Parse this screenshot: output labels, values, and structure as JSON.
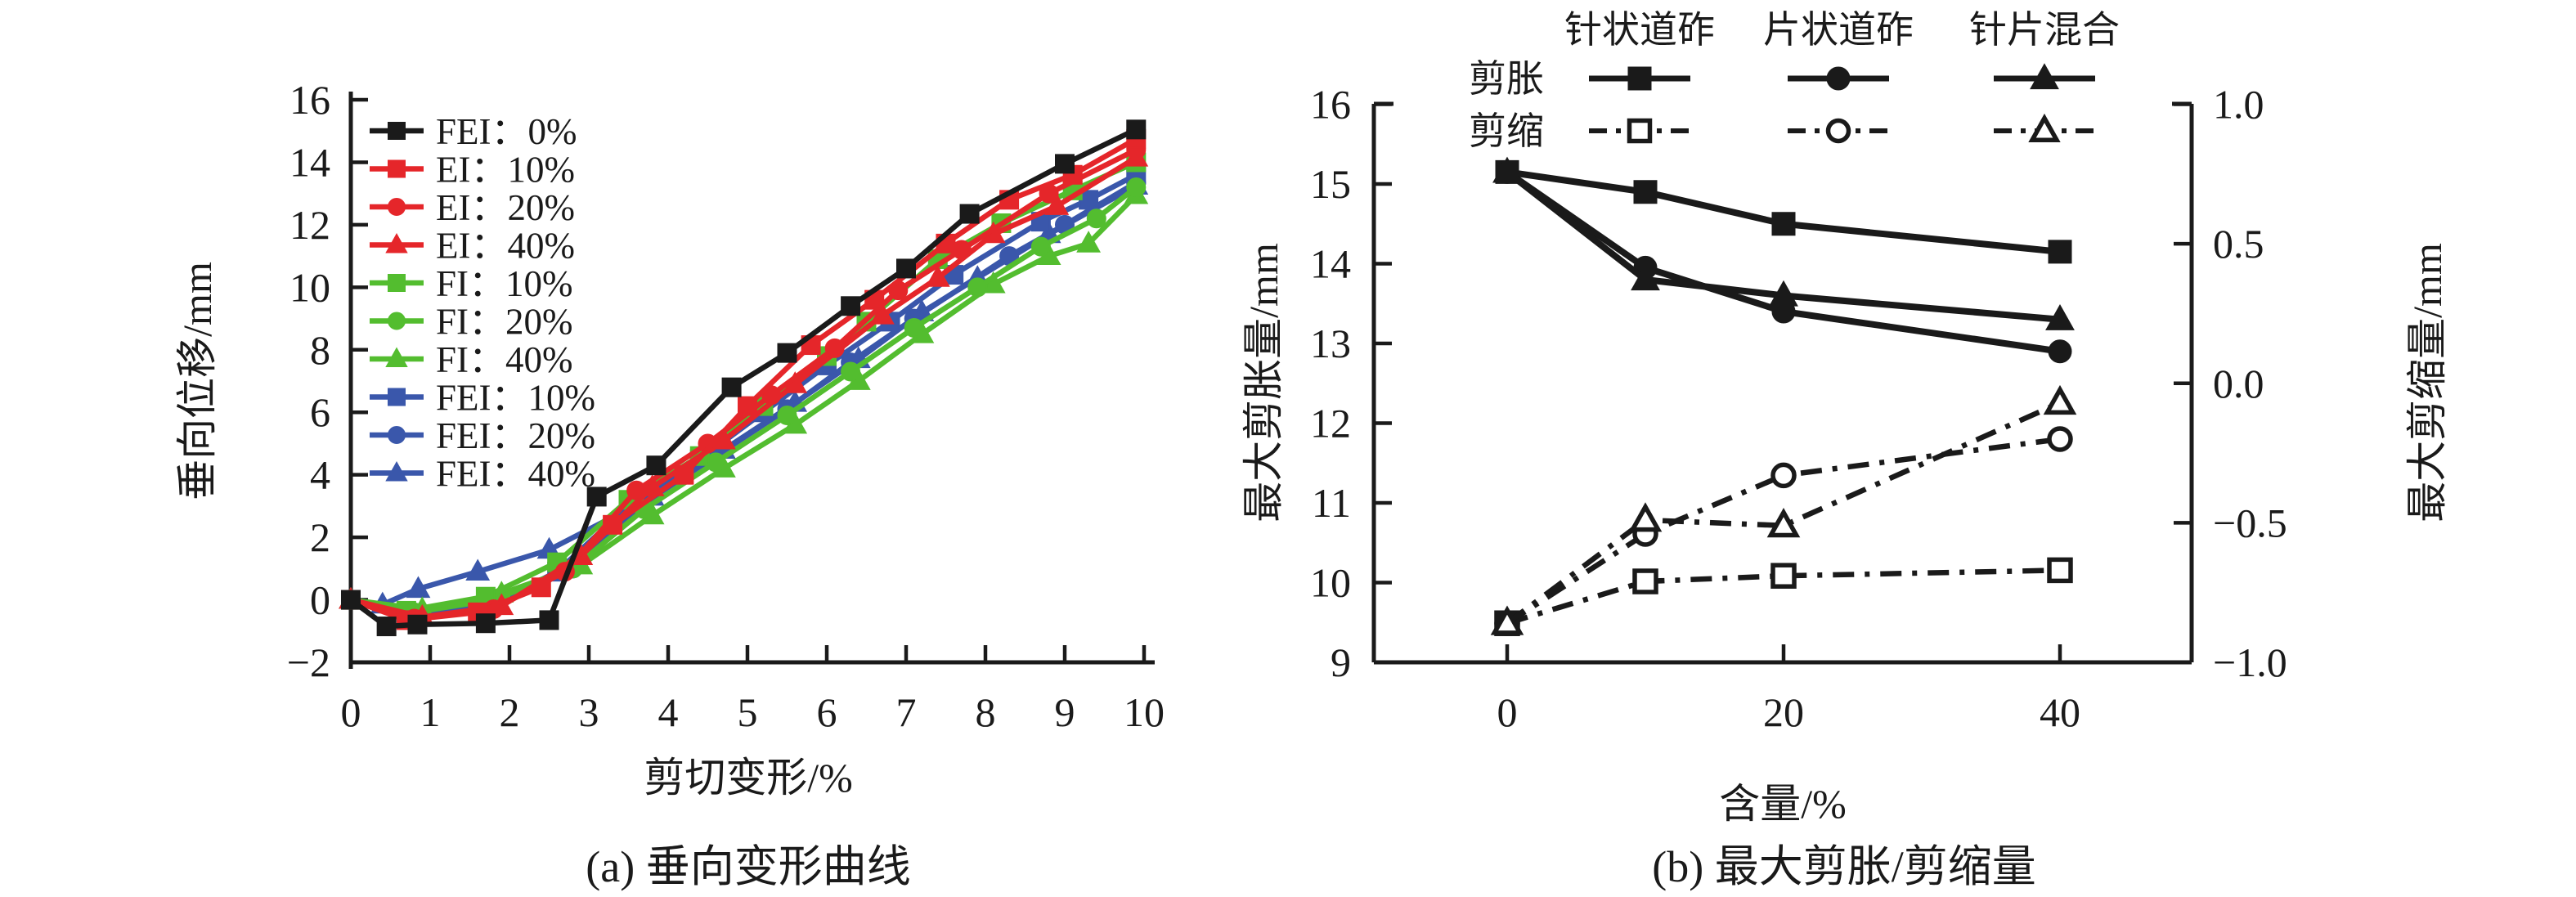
{
  "figure": {
    "background": "#ffffff",
    "axis_color": "#1a1a1a"
  },
  "chart_data": [
    {
      "id": "a",
      "type": "line",
      "title": "(a) 垂向变形曲线",
      "xlabel": "剪切变形/%",
      "ylabel": "垂向位移/mm",
      "xlim": [
        0,
        10.15
      ],
      "ylim": [
        -2,
        16
      ],
      "x_ticks": [
        0,
        1,
        2,
        3,
        4,
        5,
        6,
        7,
        8,
        9,
        10
      ],
      "y_ticks": [
        -2,
        0,
        2,
        4,
        6,
        8,
        10,
        12,
        14,
        16
      ],
      "grid": false,
      "legend_position": "top-left-inside",
      "series": [
        {
          "name": "FEI：0%",
          "color": "#1a1a1a",
          "marker": "square",
          "fill": "filled",
          "line": "solid",
          "points": [
            [
              0,
              0
            ],
            [
              0.45,
              -0.85
            ],
            [
              0.84,
              -0.79
            ],
            [
              1.7,
              -0.75
            ],
            [
              2.5,
              -0.65
            ],
            [
              3.1,
              3.3
            ],
            [
              3.85,
              4.3
            ],
            [
              4.8,
              6.8
            ],
            [
              5.5,
              7.9
            ],
            [
              6.3,
              9.4
            ],
            [
              7.0,
              10.6
            ],
            [
              7.8,
              12.35
            ],
            [
              9.0,
              13.95
            ],
            [
              9.9,
              15.05
            ]
          ]
        },
        {
          "name": "EI：10%",
          "color": "#e5262a",
          "marker": "square",
          "fill": "filled",
          "line": "solid",
          "points": [
            [
              0,
              0
            ],
            [
              0.7,
              -0.65
            ],
            [
              1.6,
              -0.4
            ],
            [
              2.4,
              0.4
            ],
            [
              3.3,
              2.4
            ],
            [
              4.2,
              4.0
            ],
            [
              5.0,
              6.2
            ],
            [
              5.8,
              8.15
            ],
            [
              6.6,
              9.6
            ],
            [
              7.5,
              11.4
            ],
            [
              8.3,
              12.8
            ],
            [
              9.1,
              13.6
            ],
            [
              9.9,
              14.75
            ]
          ]
        },
        {
          "name": "EI：20%",
          "color": "#e5262a",
          "marker": "circle",
          "fill": "filled",
          "line": "solid",
          "points": [
            [
              0,
              0
            ],
            [
              0.8,
              -0.6
            ],
            [
              1.8,
              -0.3
            ],
            [
              2.7,
              0.9
            ],
            [
              3.6,
              3.5
            ],
            [
              4.5,
              5.0
            ],
            [
              5.3,
              6.55
            ],
            [
              6.1,
              8.05
            ],
            [
              6.9,
              9.9
            ],
            [
              7.7,
              11.2
            ],
            [
              8.8,
              13.0
            ],
            [
              9.9,
              14.4
            ]
          ]
        },
        {
          "name": "EI：40%",
          "color": "#e5262a",
          "marker": "triangle",
          "fill": "filled",
          "line": "solid",
          "points": [
            [
              0,
              0
            ],
            [
              0.9,
              -0.55
            ],
            [
              1.9,
              -0.2
            ],
            [
              2.9,
              1.4
            ],
            [
              3.8,
              3.6
            ],
            [
              4.7,
              5.1
            ],
            [
              5.6,
              6.9
            ],
            [
              6.7,
              9.1
            ],
            [
              7.4,
              10.3
            ],
            [
              8.1,
              11.7
            ],
            [
              8.9,
              12.6
            ],
            [
              9.9,
              14.15
            ]
          ]
        },
        {
          "name": "FI：10%",
          "color": "#53bd2f",
          "marker": "square",
          "fill": "filled",
          "line": "solid",
          "points": [
            [
              0,
              0
            ],
            [
              0.7,
              -0.35
            ],
            [
              1.7,
              0.1
            ],
            [
              2.6,
              1.2
            ],
            [
              3.5,
              3.2
            ],
            [
              4.4,
              4.6
            ],
            [
              5.2,
              6.2
            ],
            [
              6.0,
              7.8
            ],
            [
              6.5,
              8.9
            ],
            [
              7.4,
              10.9
            ],
            [
              8.2,
              12.05
            ],
            [
              9.1,
              13.1
            ],
            [
              9.9,
              14.0
            ]
          ]
        },
        {
          "name": "FI：20%",
          "color": "#53bd2f",
          "marker": "circle",
          "fill": "filled",
          "line": "solid",
          "points": [
            [
              0,
              0
            ],
            [
              0.8,
              -0.4
            ],
            [
              1.8,
              0.0
            ],
            [
              2.8,
              1.0
            ],
            [
              3.7,
              2.9
            ],
            [
              4.6,
              4.4
            ],
            [
              5.5,
              5.9
            ],
            [
              6.3,
              7.3
            ],
            [
              7.1,
              8.7
            ],
            [
              7.9,
              10.0
            ],
            [
              8.7,
              11.3
            ],
            [
              9.4,
              12.2
            ],
            [
              9.9,
              13.2
            ]
          ]
        },
        {
          "name": "FI：40%",
          "color": "#53bd2f",
          "marker": "triangle",
          "fill": "filled",
          "line": "solid",
          "points": [
            [
              0,
              0
            ],
            [
              0.9,
              -0.3
            ],
            [
              1.9,
              0.2
            ],
            [
              2.9,
              1.1
            ],
            [
              3.8,
              2.7
            ],
            [
              4.7,
              4.2
            ],
            [
              5.6,
              5.6
            ],
            [
              6.4,
              7.0
            ],
            [
              7.2,
              8.5
            ],
            [
              8.1,
              10.1
            ],
            [
              8.8,
              11.0
            ],
            [
              9.3,
              11.4
            ],
            [
              9.9,
              12.95
            ]
          ]
        },
        {
          "name": "FEI：10%",
          "color": "#3a57ab",
          "marker": "square",
          "fill": "filled",
          "line": "solid",
          "points": [
            [
              0,
              0
            ],
            [
              0.7,
              -0.55
            ],
            [
              1.7,
              -0.25
            ],
            [
              2.6,
              0.9
            ],
            [
              3.5,
              3.0
            ],
            [
              4.4,
              4.5
            ],
            [
              5.2,
              6.0
            ],
            [
              6.0,
              7.5
            ],
            [
              6.8,
              8.9
            ],
            [
              7.6,
              10.4
            ],
            [
              8.7,
              12.1
            ],
            [
              9.3,
              12.8
            ],
            [
              9.9,
              13.6
            ]
          ]
        },
        {
          "name": "FEI：20%",
          "color": "#3a57ab",
          "marker": "circle",
          "fill": "filled",
          "line": "solid",
          "points": [
            [
              0,
              0
            ],
            [
              0.8,
              -0.5
            ],
            [
              1.8,
              -0.15
            ],
            [
              2.8,
              1.0
            ],
            [
              3.7,
              3.1
            ],
            [
              4.6,
              4.6
            ],
            [
              5.5,
              6.1
            ],
            [
              6.3,
              7.6
            ],
            [
              7.1,
              9.0
            ],
            [
              8.3,
              11.0
            ],
            [
              9.0,
              12.0
            ],
            [
              9.9,
              13.35
            ]
          ]
        },
        {
          "name": "FEI：40%",
          "color": "#3a57ab",
          "marker": "triangle",
          "fill": "filled",
          "line": "solid",
          "points": [
            [
              0,
              0
            ],
            [
              0.4,
              -0.15
            ],
            [
              0.85,
              0.35
            ],
            [
              1.6,
              0.9
            ],
            [
              2.5,
              1.6
            ],
            [
              3.8,
              3.3
            ],
            [
              4.7,
              4.8
            ],
            [
              5.6,
              6.3
            ],
            [
              6.4,
              7.7
            ],
            [
              7.2,
              9.2
            ],
            [
              7.9,
              10.3
            ],
            [
              8.8,
              11.7
            ],
            [
              9.9,
              13.25
            ]
          ]
        }
      ]
    },
    {
      "id": "b",
      "type": "line",
      "title": "(b) 最大剪胀/剪缩量",
      "xlabel": "含量/%",
      "ylabel_left": "最大剪胀量/mm",
      "ylabel_right": "最大剪缩量/mm",
      "xlim": [
        -9.6,
        49.5
      ],
      "ylim_left": [
        9,
        16
      ],
      "ylim_right": [
        -1.0,
        1.0
      ],
      "x_ticks": [
        0,
        20,
        40
      ],
      "y_ticks_left": [
        9,
        10,
        11,
        12,
        13,
        14,
        15,
        16
      ],
      "y_ticks_right": [
        "1.0",
        "0.5",
        "0.0",
        "−0.5",
        "−1.0"
      ],
      "grid": false,
      "color": "#1a1a1a",
      "legend": {
        "col_headers": [
          "针状道砟",
          "片状道砟",
          "针片混合"
        ],
        "row_labels": [
          "剪胀",
          "剪缩"
        ]
      },
      "series": [
        {
          "name": "剪缩-针状道砟",
          "group": "剪缩",
          "category": "针状道砟",
          "axis": "right",
          "marker": "square",
          "fill": "open",
          "line": "dashdot",
          "x": [
            0,
            10,
            20,
            40
          ],
          "y": [
            -0.86,
            -0.71,
            -0.69,
            -0.67
          ]
        },
        {
          "name": "剪缩-片状道砟",
          "group": "剪缩",
          "category": "片状道砟",
          "axis": "right",
          "marker": "circle",
          "fill": "open",
          "line": "dashdot",
          "x": [
            0,
            10,
            20,
            40
          ],
          "y": [
            -0.86,
            -0.54,
            -0.33,
            -0.2
          ]
        },
        {
          "name": "剪缩-针片混合",
          "group": "剪缩",
          "category": "针片混合",
          "axis": "right",
          "marker": "triangle",
          "fill": "open",
          "line": "dashdot",
          "x": [
            0,
            10,
            20,
            40
          ],
          "y": [
            -0.86,
            -0.49,
            -0.51,
            -0.07
          ]
        },
        {
          "name": "剪胀-针状道砟",
          "group": "剪胀",
          "category": "针状道砟",
          "axis": "left",
          "marker": "square",
          "fill": "filled",
          "line": "solid",
          "x": [
            0,
            10,
            20,
            40
          ],
          "y": [
            15.15,
            14.9,
            14.5,
            14.15
          ]
        },
        {
          "name": "剪胀-片状道砟",
          "group": "剪胀",
          "category": "片状道砟",
          "axis": "left",
          "marker": "circle",
          "fill": "filled",
          "line": "solid",
          "x": [
            0,
            10,
            20,
            40
          ],
          "y": [
            15.15,
            13.95,
            13.4,
            12.9
          ]
        },
        {
          "name": "剪胀-针片混合",
          "group": "剪胀",
          "category": "针片混合",
          "axis": "left",
          "marker": "triangle",
          "fill": "filled",
          "line": "solid",
          "x": [
            0,
            10,
            20,
            40
          ],
          "y": [
            15.15,
            13.8,
            13.6,
            13.3
          ]
        }
      ]
    }
  ]
}
